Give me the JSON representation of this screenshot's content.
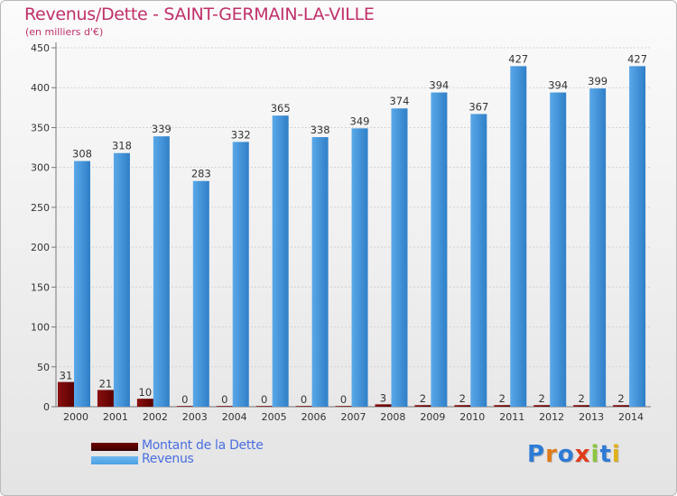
{
  "header": {
    "title": "Revenus/Dette - SAINT-GERMAIN-LA-VILLE",
    "subtitle": "(en milliers d'€)"
  },
  "legend": {
    "items": [
      {
        "label": "Montant de la Dette",
        "color": "#6e0000"
      },
      {
        "label": "Revenus",
        "color": "#4aa0e2"
      }
    ]
  },
  "logo": {
    "text": "Proxiti"
  },
  "colors": {
    "accent": "#c0306a",
    "debt": "#6e0000",
    "revenue": "#4aa0e2"
  },
  "chart_data": {
    "type": "bar",
    "title": "Revenus/Dette - SAINT-GERMAIN-LA-VILLE",
    "subtitle": "(en milliers d'€)",
    "categories": [
      "2000",
      "2001",
      "2002",
      "2003",
      "2004",
      "2005",
      "2006",
      "2007",
      "2008",
      "2009",
      "2010",
      "2011",
      "2012",
      "2013",
      "2014"
    ],
    "series": [
      {
        "name": "Montant de la Dette",
        "values": [
          31,
          21,
          10,
          0,
          0,
          0,
          0,
          0,
          3,
          2,
          2,
          2,
          2,
          2,
          2
        ]
      },
      {
        "name": "Revenus",
        "values": [
          308,
          318,
          339,
          283,
          332,
          365,
          338,
          349,
          374,
          394,
          367,
          427,
          394,
          399,
          427
        ]
      }
    ],
    "yticks": [
      0,
      50,
      100,
      150,
      200,
      250,
      300,
      350,
      400,
      450
    ],
    "ylim": [
      0,
      450
    ],
    "grid": true,
    "legend_position": "bottom-left"
  }
}
